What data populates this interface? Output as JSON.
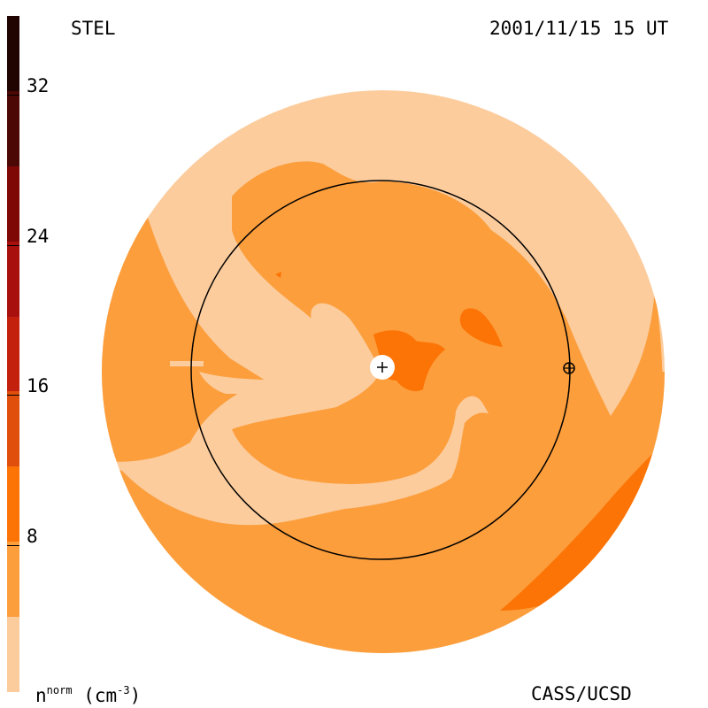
{
  "header": {
    "instrument": "STEL",
    "timestamp": "2001/11/15 15 UT"
  },
  "footer": {
    "quantity_base": "n",
    "quantity_sup": "norm",
    "unit_open": "(cm",
    "unit_sup": "-3",
    "unit_close": ")",
    "credit": "CASS/UCSD"
  },
  "colorbar": {
    "min": 0,
    "max": 36,
    "ticks": [
      {
        "value": 8,
        "label": "8"
      },
      {
        "value": 16,
        "label": "16"
      },
      {
        "value": 24,
        "label": "24"
      },
      {
        "value": 32,
        "label": "32"
      }
    ],
    "levels": [
      {
        "from": 0,
        "to": 4,
        "color": "#fccc9d"
      },
      {
        "from": 4,
        "to": 8,
        "color": "#fc9e3c"
      },
      {
        "from": 8,
        "to": 12,
        "color": "#fc7406"
      },
      {
        "from": 12,
        "to": 16,
        "color": "#e0500c"
      },
      {
        "from": 16,
        "to": 20,
        "color": "#c4200e"
      },
      {
        "from": 20,
        "to": 24,
        "color": "#a8100e"
      },
      {
        "from": 24,
        "to": 28,
        "color": "#7e0806"
      },
      {
        "from": 28,
        "to": 32,
        "color": "#4c0804"
      },
      {
        "from": 32,
        "to": 36,
        "color": "#200402"
      }
    ]
  },
  "colors": {
    "level_1": "#fccc9d",
    "level_2": "#fc9e3c",
    "level_3": "#fc7406",
    "orbit": "#000000"
  },
  "markers": {
    "sun": "sun-marker-icon",
    "earth": "earth-marker-icon"
  }
}
